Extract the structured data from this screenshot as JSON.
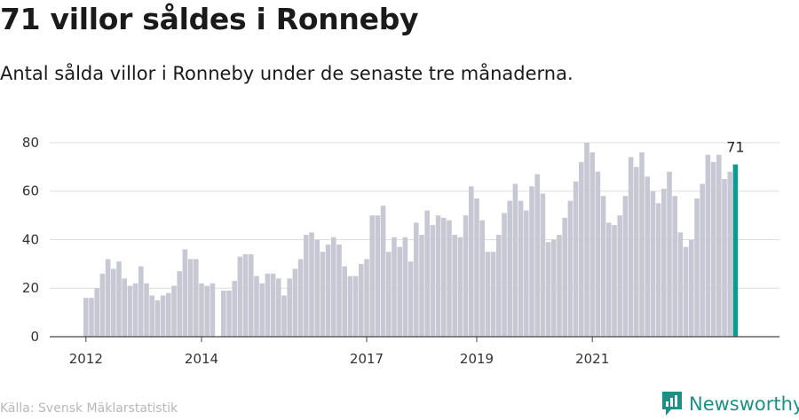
{
  "header": {
    "title": "71 villor såldes i Ronneby",
    "subtitle": "Antal sålda villor i Ronneby under de senaste tre månaderna."
  },
  "footer": {
    "source": "Källa: Svensk Mäklarstatistik",
    "brand": "Newsworthy"
  },
  "colors": {
    "bar": "#c8c8d4",
    "highlight": "#0e9a91",
    "grid": "#dddddd",
    "axis": "#444444",
    "brand": "#1d8f84"
  },
  "chart_data": {
    "type": "bar",
    "x_tick_labels": [
      "2012",
      "2014",
      "2017",
      "2019",
      "2021"
    ],
    "x_tick_positions": [
      0,
      21,
      51,
      71,
      92
    ],
    "y_ticks": [
      0,
      20,
      40,
      60,
      80
    ],
    "ylim": [
      0,
      84
    ],
    "values": [
      16,
      16,
      20,
      26,
      32,
      28,
      31,
      24,
      21,
      22,
      29,
      22,
      17,
      15,
      17,
      18,
      21,
      27,
      36,
      32,
      32,
      22,
      21,
      22,
      0,
      19,
      19,
      23,
      33,
      34,
      34,
      25,
      22,
      26,
      26,
      24,
      17,
      24,
      28,
      32,
      42,
      43,
      40,
      35,
      38,
      41,
      38,
      29,
      25,
      25,
      30,
      32,
      50,
      50,
      54,
      35,
      41,
      37,
      41,
      31,
      47,
      42,
      52,
      46,
      50,
      49,
      48,
      42,
      41,
      50,
      62,
      57,
      48,
      35,
      35,
      42,
      51,
      56,
      63,
      56,
      52,
      62,
      67,
      59,
      39,
      40,
      42,
      49,
      56,
      64,
      72,
      80,
      76,
      68,
      58,
      47,
      46,
      50,
      58,
      74,
      70,
      76,
      66,
      60,
      55,
      61,
      68,
      58,
      43,
      37,
      40,
      57,
      63,
      75,
      72,
      75,
      65,
      68,
      71
    ],
    "highlight_index": 118,
    "highlight_label": "71"
  }
}
